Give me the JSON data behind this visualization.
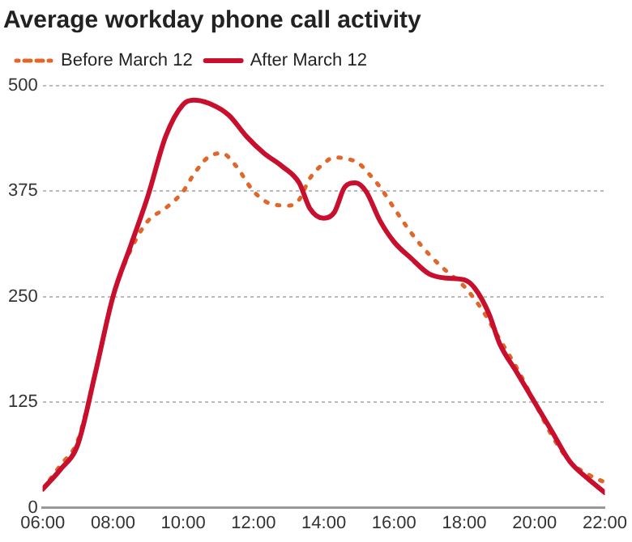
{
  "chart_data": {
    "type": "line",
    "title": "Average workday phone call activity",
    "series": [
      {
        "name": "Before March 12",
        "color": "#e0662a",
        "line_style": "dotted",
        "x": [
          6,
          6.5,
          7,
          7.5,
          8,
          8.5,
          9,
          9.5,
          10,
          10.3,
          10.7,
          11.1,
          11.5,
          12,
          12.5,
          13,
          13.3,
          13.6,
          14,
          14.3,
          14.7,
          15,
          15.3,
          15.6,
          16,
          16.5,
          17,
          17.5,
          18,
          18.5,
          19,
          19.5,
          20,
          20.5,
          21,
          21.5,
          22
        ],
        "values": [
          22,
          50,
          80,
          160,
          250,
          305,
          340,
          355,
          375,
          395,
          415,
          420,
          405,
          375,
          360,
          358,
          365,
          390,
          408,
          415,
          413,
          408,
          395,
          380,
          355,
          325,
          300,
          280,
          262,
          235,
          200,
          165,
          125,
          85,
          55,
          40,
          30
        ]
      },
      {
        "name": "After March 12",
        "color": "#c8102e",
        "line_style": "solid",
        "x": [
          6,
          6.5,
          7,
          7.5,
          8,
          8.5,
          9,
          9.5,
          10,
          10.3,
          10.8,
          11.3,
          11.8,
          12.3,
          12.8,
          13.3,
          13.6,
          14,
          14.3,
          14.6,
          14.9,
          15.2,
          15.6,
          16,
          16.5,
          17,
          17.5,
          18,
          18.3,
          18.7,
          19,
          19.5,
          20,
          20.5,
          21,
          21.5,
          22
        ],
        "values": [
          22,
          45,
          75,
          160,
          250,
          310,
          370,
          440,
          478,
          483,
          478,
          465,
          440,
          420,
          405,
          385,
          355,
          343,
          350,
          380,
          385,
          375,
          340,
          315,
          295,
          277,
          272,
          270,
          260,
          230,
          195,
          160,
          125,
          90,
          55,
          35,
          18
        ]
      }
    ],
    "xlim": [
      6,
      22
    ],
    "xticks": [
      {
        "value": 6,
        "label": "06:00"
      },
      {
        "value": 8,
        "label": "08:00"
      },
      {
        "value": 10,
        "label": "10:00"
      },
      {
        "value": 12,
        "label": "12:00"
      },
      {
        "value": 14,
        "label": "14:00"
      },
      {
        "value": 16,
        "label": "16:00"
      },
      {
        "value": 18,
        "label": "18:00"
      },
      {
        "value": 20,
        "label": "20:00"
      },
      {
        "value": 22,
        "label": "22:00"
      }
    ],
    "ylim": [
      0,
      500
    ],
    "yticks": [
      0,
      125,
      250,
      375,
      500
    ],
    "grid": "y",
    "legend": "top left",
    "marker": "none"
  }
}
